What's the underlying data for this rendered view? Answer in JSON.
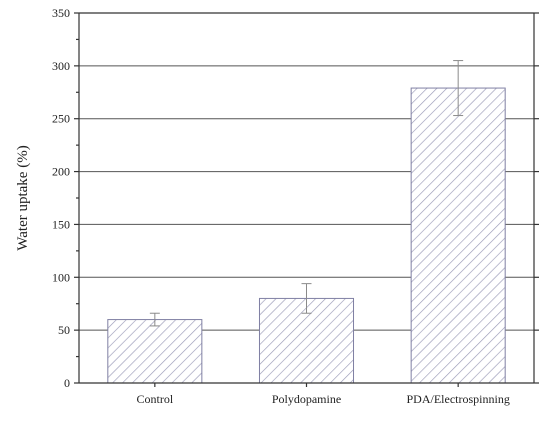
{
  "chart_data": {
    "type": "bar",
    "categories": [
      "Control",
      "Polydopamine",
      "PDA/Electrospinning"
    ],
    "values": [
      60,
      80,
      279
    ],
    "error": [
      6,
      14,
      26
    ],
    "title": "",
    "xlabel": "",
    "ylabel": "Water uptake (%)",
    "ylim": [
      0,
      350
    ],
    "yticks": [
      0,
      50,
      100,
      150,
      200,
      250,
      300,
      350
    ],
    "grid": "horizontal",
    "bar_style": "diagonal-hatch",
    "colors": {
      "hatch": "#9a9ab8",
      "axis": "#333333",
      "grid": "#555555",
      "error_bar": "#8a8a8a"
    }
  }
}
